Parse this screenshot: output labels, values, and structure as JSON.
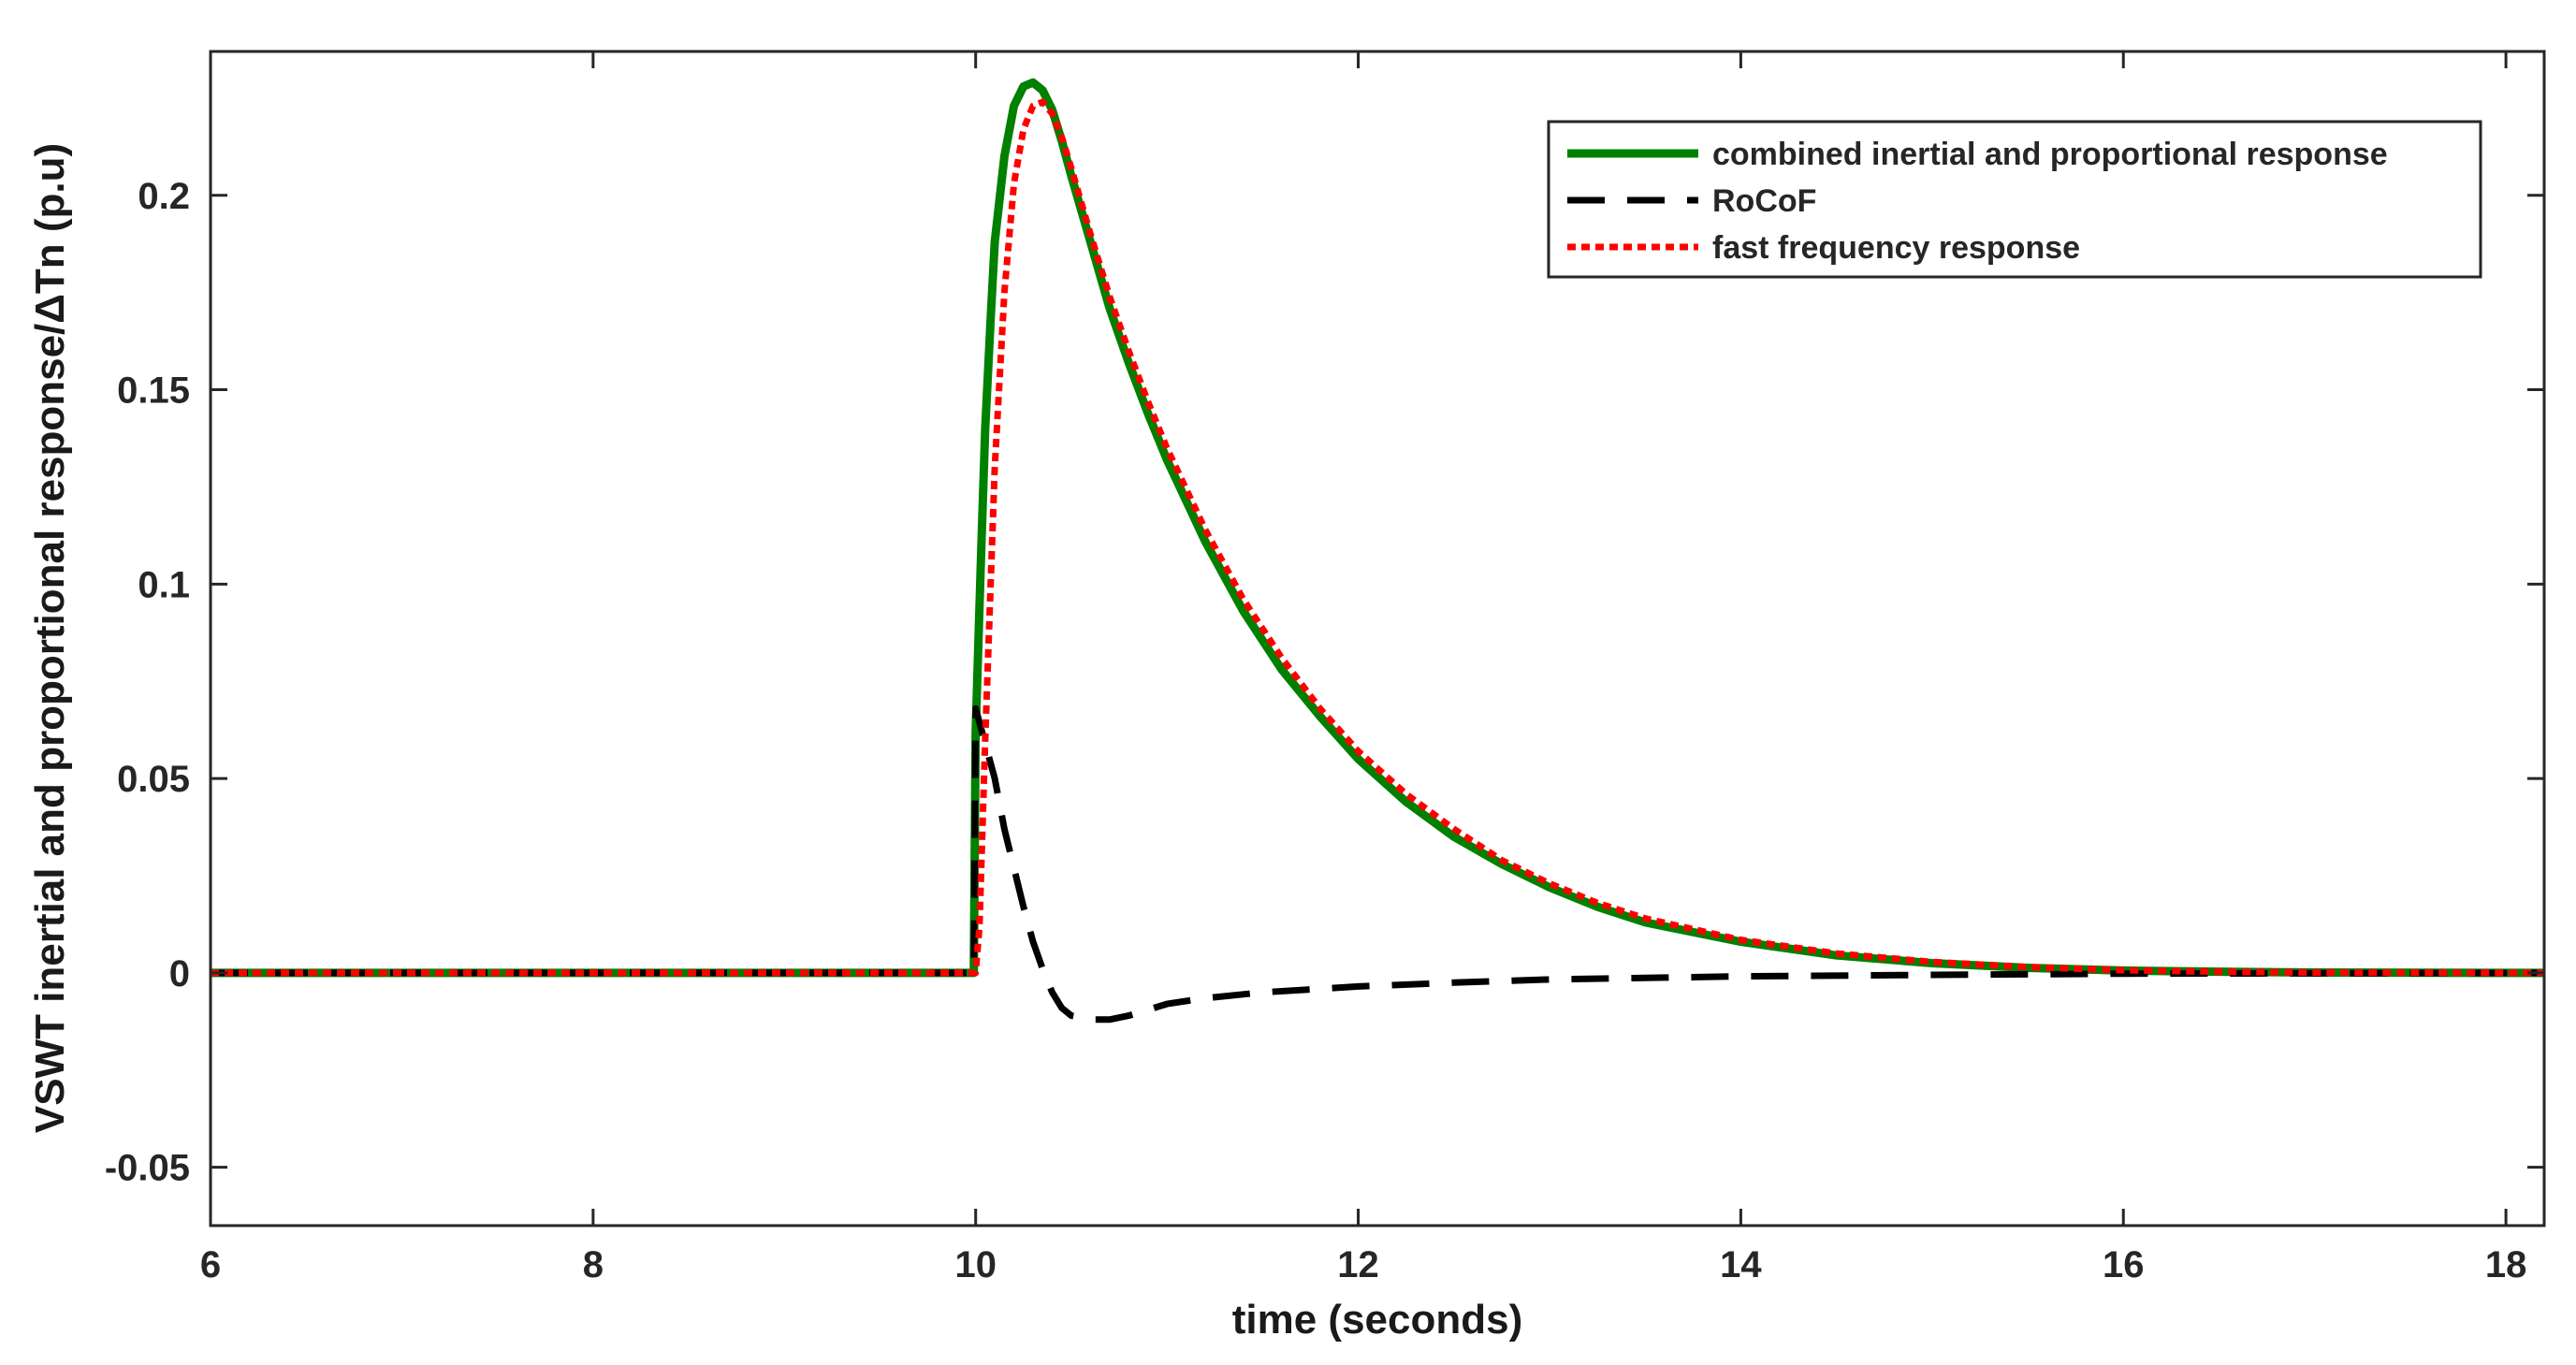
{
  "chart_data": {
    "type": "line",
    "title": "",
    "xlabel": "time (seconds)",
    "ylabel": "VSWT inertial and proportional response/ΔTn (p.u)",
    "xlim": [
      6,
      18.2
    ],
    "ylim": [
      -0.065,
      0.237
    ],
    "x_ticks": [
      6,
      8,
      10,
      12,
      14,
      16,
      18
    ],
    "y_ticks": [
      -0.05,
      0,
      0.05,
      0.1,
      0.15,
      0.2
    ],
    "x_tick_labels": [
      "6",
      "8",
      "10",
      "12",
      "14",
      "16",
      "18"
    ],
    "y_tick_labels": [
      "-0.05",
      "0",
      "0.05",
      "0.1",
      "0.15",
      "0.2"
    ],
    "grid": false,
    "legend_position": "top-right",
    "series": [
      {
        "name": "combined inertial and proportional response",
        "color": "#008000",
        "style": "solid",
        "x": [
          6,
          9.99,
          10.0,
          10.03,
          10.05,
          10.08,
          10.1,
          10.15,
          10.2,
          10.25,
          10.3,
          10.35,
          10.4,
          10.45,
          10.5,
          10.6,
          10.7,
          10.8,
          10.9,
          11.0,
          11.2,
          11.4,
          11.6,
          11.8,
          12.0,
          12.25,
          12.5,
          12.75,
          13.0,
          13.25,
          13.5,
          14.0,
          14.5,
          15.0,
          15.5,
          16.0,
          16.5,
          17.0,
          18.2
        ],
        "y": [
          0,
          0,
          0.062,
          0.11,
          0.14,
          0.17,
          0.188,
          0.21,
          0.223,
          0.228,
          0.229,
          0.227,
          0.222,
          0.214,
          0.205,
          0.188,
          0.171,
          0.157,
          0.144,
          0.132,
          0.111,
          0.093,
          0.078,
          0.066,
          0.055,
          0.044,
          0.035,
          0.028,
          0.022,
          0.017,
          0.013,
          0.008,
          0.0045,
          0.0025,
          0.0013,
          0.0006,
          0.0003,
          0.0001,
          0
        ]
      },
      {
        "name": "RoCoF",
        "color": "#000000",
        "style": "dashed",
        "x": [
          6,
          9.99,
          10.0,
          10.05,
          10.1,
          10.15,
          10.2,
          10.25,
          10.3,
          10.35,
          10.4,
          10.45,
          10.5,
          10.6,
          10.7,
          10.8,
          10.9,
          11.0,
          11.2,
          11.5,
          12.0,
          12.5,
          13.0,
          14.0,
          15.0,
          16.0,
          18.2
        ],
        "y": [
          0,
          0,
          0.068,
          0.059,
          0.05,
          0.037,
          0.027,
          0.017,
          0.008,
          0.001,
          -0.005,
          -0.009,
          -0.011,
          -0.012,
          -0.012,
          -0.011,
          -0.0095,
          -0.008,
          -0.0065,
          -0.005,
          -0.0035,
          -0.0025,
          -0.0017,
          -0.0009,
          -0.0005,
          -0.0002,
          0
        ]
      },
      {
        "name": "fast frequency response",
        "color": "#ff0000",
        "style": "dotted",
        "x": [
          6,
          10.0,
          10.02,
          10.05,
          10.1,
          10.15,
          10.2,
          10.25,
          10.3,
          10.35,
          10.4,
          10.45,
          10.5,
          10.6,
          10.7,
          10.8,
          10.9,
          11.0,
          11.2,
          11.4,
          11.6,
          11.8,
          12.0,
          12.25,
          12.5,
          12.75,
          13.0,
          13.25,
          13.5,
          14.0,
          14.5,
          15.0,
          15.5,
          16.0,
          16.5,
          17.0,
          18.2
        ],
        "y": [
          0,
          0,
          0.012,
          0.06,
          0.13,
          0.175,
          0.203,
          0.217,
          0.223,
          0.224,
          0.221,
          0.215,
          0.207,
          0.19,
          0.174,
          0.16,
          0.147,
          0.135,
          0.114,
          0.096,
          0.081,
          0.068,
          0.057,
          0.046,
          0.037,
          0.029,
          0.023,
          0.018,
          0.014,
          0.0085,
          0.005,
          0.0028,
          0.0015,
          0.0007,
          0.0003,
          0.0001,
          0
        ]
      }
    ]
  }
}
